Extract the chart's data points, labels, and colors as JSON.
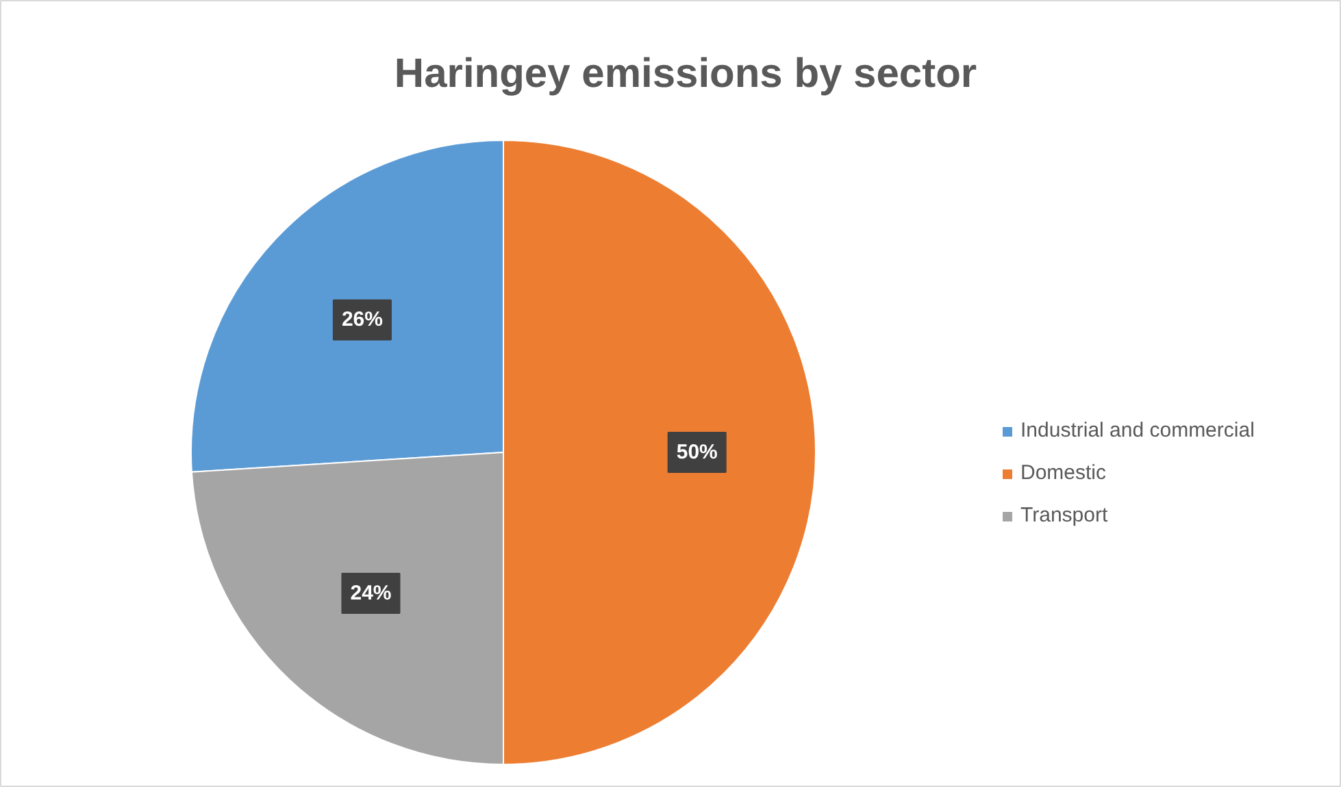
{
  "chart_data": {
    "type": "pie",
    "title": "Haringey emissions by sector",
    "categories": [
      "Industrial and commercial",
      "Domestic",
      "Transport"
    ],
    "values": [
      26,
      50,
      24
    ],
    "colors": [
      "#5b9bd5",
      "#ed7d31",
      "#a5a5a5"
    ],
    "value_labels": [
      "26%",
      "50%",
      "24%"
    ],
    "legend": "right"
  }
}
